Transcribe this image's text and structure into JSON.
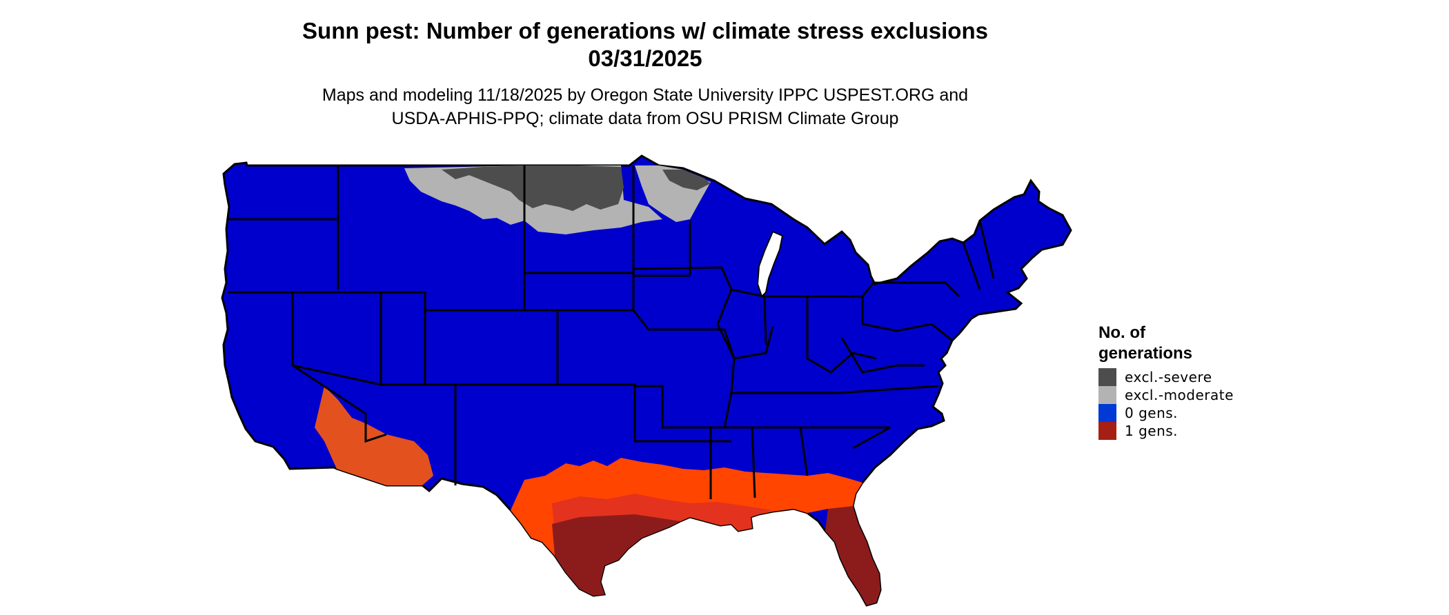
{
  "title_line1": "Sunn pest: Number of generations w/ climate stress exclusions",
  "title_line2": "03/31/2025",
  "subtitle_line1": "Maps and modeling 11/18/2025 by Oregon State University IPPC USPEST.ORG and",
  "subtitle_line2": "USDA-APHIS-PPQ; climate data from OSU PRISM Climate Group",
  "legend": {
    "title": "No. of generations",
    "items": [
      {
        "label": "excl.-severe",
        "color": "#4d4d4d"
      },
      {
        "label": "excl.-moderate",
        "color": "#b3b3b3"
      },
      {
        "label": "0 gens.",
        "color": "#0039d6"
      },
      {
        "label": "1 gens.",
        "color": "#a61f14"
      }
    ]
  },
  "colors": {
    "zero_gens_fill": "#0000cc",
    "excl_severe": "#4d4d4d",
    "excl_moderate": "#b3b3b3",
    "gen_gradient_light": "#ff4500",
    "gen_gradient_mid": "#e3321e",
    "gen_gradient_dark": "#8c1c1c",
    "state_borders": "#000000"
  }
}
